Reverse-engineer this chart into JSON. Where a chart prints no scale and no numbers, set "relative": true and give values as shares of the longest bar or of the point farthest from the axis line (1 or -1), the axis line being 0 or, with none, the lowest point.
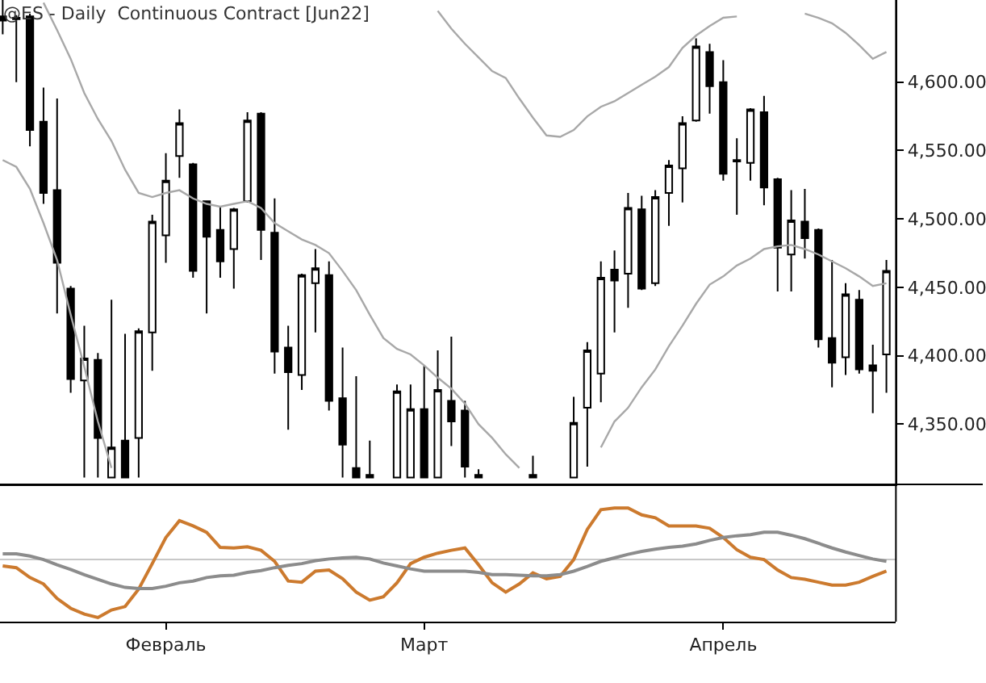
{
  "chart_data": [
    {
      "type": "candlestick",
      "title": "@ES - Daily  Continuous Contract [Jun22]",
      "categories": [
        null,
        null,
        null,
        null,
        null,
        null,
        null,
        null,
        null,
        null,
        null,
        null,
        "Февраль",
        null,
        null,
        null,
        null,
        null,
        null,
        null,
        null,
        null,
        null,
        null,
        null,
        null,
        null,
        null,
        null,
        null,
        null,
        "Март",
        null,
        null,
        null,
        null,
        null,
        null,
        null,
        null,
        null,
        null,
        null,
        null,
        null,
        null,
        null,
        null,
        null,
        null,
        null,
        null,
        null,
        "Апрель",
        null,
        null,
        null,
        null,
        null,
        null,
        null,
        null,
        null,
        null,
        null,
        null
      ],
      "ohlc": [
        [
          4648,
          4660,
          4635,
          4645
        ],
        [
          4647,
          4649,
          4600,
          4646
        ],
        [
          4648,
          4650,
          4553,
          4565
        ],
        [
          4571,
          4596,
          4511,
          4519
        ],
        [
          4521,
          4588,
          4431,
          4468
        ],
        [
          4449,
          4451,
          4373,
          4383
        ],
        [
          4382,
          4422,
          4311,
          4398
        ],
        [
          4397,
          4402,
          4311,
          4340
        ],
        [
          4311,
          4441,
          4311,
          4333
        ],
        [
          4338,
          4416,
          4311,
          4311
        ],
        [
          4340,
          4420,
          4311,
          4418
        ],
        [
          4417,
          4503,
          4389,
          4498
        ],
        [
          4488,
          4548,
          4468,
          4528
        ],
        [
          4546,
          4580,
          4530,
          4570
        ],
        [
          4540,
          4541,
          4457,
          4462
        ],
        [
          4513,
          4513,
          4431,
          4487
        ],
        [
          4492,
          4509,
          4457,
          4469
        ],
        [
          4478,
          4508,
          4449,
          4507
        ],
        [
          4513,
          4578,
          4512,
          4572
        ],
        [
          4577,
          4578,
          4470,
          4492
        ],
        [
          4490,
          4515,
          4387,
          4403
        ],
        [
          4406,
          4422,
          4346,
          4388
        ],
        [
          4386,
          4460,
          4375,
          4459
        ],
        [
          4453,
          4478,
          4417,
          4464
        ],
        [
          4459,
          4469,
          4360,
          4367
        ],
        [
          4369,
          4406,
          4311,
          4335
        ],
        [
          4318,
          4385,
          4311,
          4311
        ],
        [
          4313,
          4338,
          4311,
          4311
        ],
        null,
        [
          4311,
          4379,
          4311,
          4374
        ],
        [
          4311,
          4379,
          4311,
          4361
        ],
        [
          4361,
          4393,
          4311,
          4311
        ],
        [
          4311,
          4404,
          4311,
          4375
        ],
        [
          4367,
          4414,
          4334,
          4352
        ],
        [
          4360,
          4367,
          4311,
          4319
        ],
        [
          4313,
          4317,
          4311,
          4311
        ],
        null,
        null,
        null,
        [
          4313,
          4327,
          4311,
          4311
        ],
        null,
        null,
        [
          4311,
          4370,
          4311,
          4351
        ],
        [
          4362,
          4410,
          4319,
          4404
        ],
        [
          4387,
          4469,
          4366,
          4457
        ],
        [
          4463,
          4477,
          4417,
          4455
        ],
        [
          4460,
          4519,
          4435,
          4508
        ],
        [
          4507,
          4517,
          4448,
          4449
        ],
        [
          4453,
          4521,
          4451,
          4516
        ],
        [
          4519,
          4543,
          4495,
          4539
        ],
        [
          4537,
          4575,
          4512,
          4570
        ],
        [
          4572,
          4632,
          4571,
          4626
        ],
        [
          4622,
          4628,
          4577,
          4597
        ],
        [
          4600,
          4616,
          4528,
          4533
        ],
        [
          4543,
          4559,
          4503,
          4542
        ],
        [
          4541,
          4581,
          4528,
          4580
        ],
        [
          4578,
          4590,
          4510,
          4523
        ],
        [
          4529,
          4530,
          4447,
          4479
        ],
        [
          4474,
          4521,
          4447,
          4499
        ],
        [
          4498,
          4522,
          4471,
          4486
        ],
        [
          4492,
          4493,
          4406,
          4412
        ],
        [
          4413,
          4470,
          4377,
          4395
        ],
        [
          4399,
          4453,
          4386,
          4445
        ],
        [
          4441,
          4448,
          4387,
          4390
        ],
        [
          4393,
          4408,
          4358,
          4389
        ],
        [
          4401,
          4470,
          4373,
          4462
        ]
      ],
      "series": [
        {
          "type": "line",
          "color": "#a8a8a8",
          "values": [
            4543,
            4538,
            4522,
            4497,
            4470,
            4430,
            4392,
            4352,
            4318,
            null,
            null,
            null,
            null,
            null,
            null,
            null,
            null,
            null,
            null,
            null,
            null,
            null,
            null,
            null,
            null,
            null,
            null,
            null,
            null,
            null,
            null,
            null,
            null,
            null,
            null,
            null,
            null,
            null,
            null,
            null,
            null,
            null,
            null,
            null,
            null,
            null,
            null,
            null,
            null,
            null,
            null,
            null,
            null,
            null,
            null,
            null,
            null,
            null,
            null,
            null,
            null,
            null,
            null,
            null,
            null,
            null
          ]
        },
        {
          "type": "line",
          "color": "#a8a8a8",
          "values": [
            null,
            null,
            null,
            4658,
            4638,
            4617,
            4592,
            4573,
            4557,
            4536,
            4519,
            4516,
            4519,
            4521,
            4515,
            4511,
            4509,
            4511,
            4513,
            4508,
            4497,
            4491,
            4485,
            4481,
            4475,
            4462,
            4448,
            4430,
            4413,
            4405,
            4401,
            4393,
            4384,
            4376,
            4365,
            4350,
            4340,
            4328,
            4318,
            null,
            null,
            null,
            null,
            null,
            4333,
            4352,
            4362,
            4377,
            4390,
            4407,
            4422,
            4438,
            4452,
            4458,
            4466,
            4471,
            4478,
            4480,
            4481,
            4478,
            4474,
            4469,
            4464,
            4458,
            4451,
            4453
          ]
        },
        {
          "type": "line",
          "color": "#a8a8a8",
          "values": [
            null,
            null,
            null,
            null,
            null,
            null,
            null,
            null,
            null,
            null,
            null,
            null,
            null,
            null,
            null,
            null,
            null,
            null,
            null,
            null,
            null,
            null,
            null,
            null,
            null,
            null,
            null,
            null,
            null,
            null,
            null,
            null,
            4652,
            4639,
            4628,
            4618,
            4608,
            4603,
            4588,
            4574,
            4561,
            4560,
            4565,
            4575,
            4582,
            4586,
            4592,
            4598,
            4604,
            4611,
            4625,
            4634,
            4641,
            4647,
            4648,
            null,
            null,
            null,
            null,
            4650,
            4647,
            4643,
            4636,
            4627,
            4617,
            4622
          ]
        }
      ],
      "ylim": [
        4306,
        4660
      ],
      "yticks": [
        {
          "value": 4350,
          "label": "4,350.00"
        },
        {
          "value": 4400,
          "label": "4,400.00"
        },
        {
          "value": 4450,
          "label": "4,450.00"
        },
        {
          "value": 4500,
          "label": "4,500.00"
        },
        {
          "value": 4550,
          "label": "4,550.00"
        },
        {
          "value": 4600,
          "label": "4,600.00"
        }
      ],
      "tick_labels": "y"
    },
    {
      "type": "line",
      "relative": true,
      "categories": [
        null,
        null,
        null,
        null,
        null,
        null,
        null,
        null,
        null,
        null,
        null,
        null,
        "Февраль",
        null,
        null,
        null,
        null,
        null,
        null,
        null,
        null,
        null,
        null,
        null,
        null,
        null,
        null,
        null,
        null,
        null,
        null,
        "Март",
        null,
        null,
        null,
        null,
        null,
        null,
        null,
        null,
        null,
        null,
        null,
        null,
        null,
        null,
        null,
        null,
        null,
        null,
        null,
        null,
        null,
        "Апрель",
        null,
        null,
        null,
        null,
        null,
        null,
        null,
        null,
        null,
        null,
        null,
        null
      ],
      "series": [
        {
          "color": "#cc7a2e",
          "values": [
            -0.11,
            -0.14,
            -0.31,
            -0.42,
            -0.67,
            -0.84,
            -0.94,
            -1,
            -0.87,
            -0.81,
            -0.51,
            -0.07,
            0.38,
            0.67,
            0.58,
            0.47,
            0.21,
            0.2,
            0.22,
            0.16,
            -0.03,
            -0.37,
            -0.39,
            -0.2,
            -0.18,
            -0.33,
            -0.56,
            -0.7,
            -0.64,
            -0.4,
            -0.07,
            0.04,
            0.11,
            0.16,
            0.2,
            -0.09,
            -0.4,
            -0.56,
            -0.42,
            -0.23,
            -0.33,
            -0.29,
            0,
            0.52,
            0.86,
            0.89,
            0.89,
            0.77,
            0.72,
            0.58,
            0.58,
            0.58,
            0.54,
            0.38,
            0.17,
            0.04,
            0,
            -0.18,
            -0.31,
            -0.34,
            -0.39,
            -0.44,
            -0.44,
            -0.39,
            -0.29,
            -0.2
          ]
        },
        {
          "color": "#8c8c8c",
          "values": [
            0.1,
            0.1,
            0.06,
            0,
            -0.09,
            -0.17,
            -0.26,
            -0.34,
            -0.42,
            -0.48,
            -0.5,
            -0.5,
            -0.46,
            -0.4,
            -0.37,
            -0.31,
            -0.28,
            -0.27,
            -0.22,
            -0.19,
            -0.14,
            -0.1,
            -0.07,
            -0.02,
            0.01,
            0.03,
            0.04,
            0.01,
            -0.06,
            -0.11,
            -0.16,
            -0.2,
            -0.2,
            -0.2,
            -0.2,
            -0.22,
            -0.26,
            -0.26,
            -0.27,
            -0.28,
            -0.28,
            -0.26,
            -0.2,
            -0.12,
            -0.03,
            0.03,
            0.09,
            0.14,
            0.18,
            0.21,
            0.23,
            0.27,
            0.33,
            0.38,
            0.41,
            0.43,
            0.47,
            0.47,
            0.42,
            0.36,
            0.28,
            0.2,
            0.13,
            0.07,
            0.01,
            -0.03
          ]
        }
      ],
      "ref_lines": [
        {
          "axis": "y",
          "value": 0,
          "color": "#c8c8c8"
        }
      ],
      "tick_labels": "x"
    }
  ]
}
